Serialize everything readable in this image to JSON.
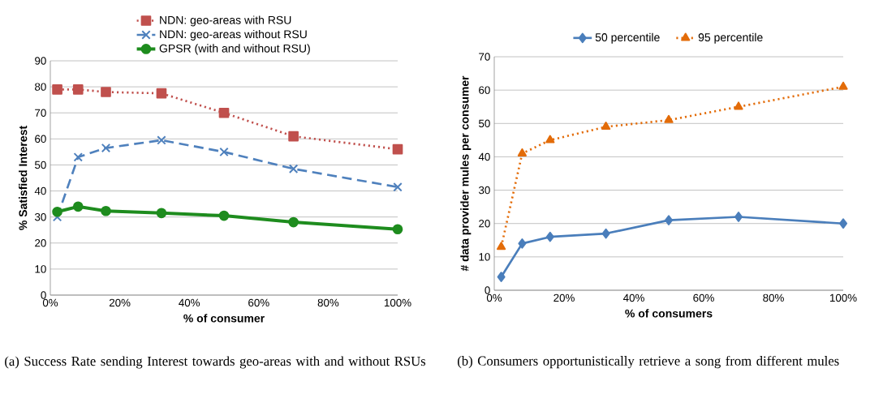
{
  "chart_data": [
    {
      "type": "line",
      "xlabel": "% of consumer",
      "ylabel": "% Satisfied Interest",
      "x": [
        0.02,
        0.08,
        0.16,
        0.32,
        0.5,
        0.7,
        1.0
      ],
      "series": [
        {
          "name": "NDN: geo-areas with RSU",
          "color": "#c0504d",
          "marker": "square",
          "line_style": "dotted",
          "values": [
            79,
            79,
            78,
            77.5,
            70,
            61,
            56
          ]
        },
        {
          "name": "NDN: geo-areas without RSU",
          "color": "#4f81bd",
          "marker": "cross",
          "line_style": "dashed",
          "values": [
            30,
            53,
            56.5,
            59.5,
            55,
            48.5,
            41.5
          ]
        },
        {
          "name": "GPSR (with and without RSU)",
          "color": "#1e8c1e",
          "marker": "circle",
          "line_style": "solid",
          "values": [
            32,
            34,
            32.3,
            31.5,
            30.5,
            28,
            25.3
          ]
        }
      ],
      "xlim": [
        0,
        1
      ],
      "ylim": [
        0,
        90
      ],
      "xticks": [
        {
          "value": 0,
          "label": "0%"
        },
        {
          "value": 0.2,
          "label": "20%"
        },
        {
          "value": 0.4,
          "label": "40%"
        },
        {
          "value": 0.6,
          "label": "60%"
        },
        {
          "value": 0.8,
          "label": "80%"
        },
        {
          "value": 1,
          "label": "100%"
        }
      ],
      "yticks": [
        0,
        10,
        20,
        30,
        40,
        50,
        60,
        70,
        80,
        90
      ],
      "grid": "y",
      "legend": "top",
      "annotations": [
        "(a) Success Rate sending Interest towards geo-areas with and without RSUs"
      ]
    },
    {
      "type": "line",
      "xlabel": "% of consumers",
      "ylabel": "# data provider mules per consumer",
      "x": [
        0.02,
        0.08,
        0.16,
        0.32,
        0.5,
        0.7,
        1.0
      ],
      "series": [
        {
          "name": "50 percentile",
          "color": "#4a7ebb",
          "marker": "diamond",
          "line_style": "solid",
          "values": [
            4,
            14,
            16,
            17,
            21,
            22,
            20
          ]
        },
        {
          "name": "95 percentile",
          "color": "#e36c09",
          "marker": "triangle",
          "line_style": "dotted",
          "values": [
            13,
            41,
            45,
            49,
            51,
            55,
            61
          ]
        }
      ],
      "xlim": [
        0,
        1
      ],
      "ylim": [
        0,
        70
      ],
      "xticks": [
        {
          "value": 0,
          "label": "0%"
        },
        {
          "value": 0.2,
          "label": "20%"
        },
        {
          "value": 0.4,
          "label": "40%"
        },
        {
          "value": 0.6,
          "label": "60%"
        },
        {
          "value": 0.8,
          "label": "80%"
        },
        {
          "value": 1,
          "label": "100%"
        }
      ],
      "yticks": [
        0,
        10,
        20,
        30,
        40,
        50,
        60,
        70
      ],
      "grid": "y",
      "legend": "top",
      "annotations": [
        "(b) Consumers opportunistically retrieve a song from different mules"
      ]
    }
  ]
}
